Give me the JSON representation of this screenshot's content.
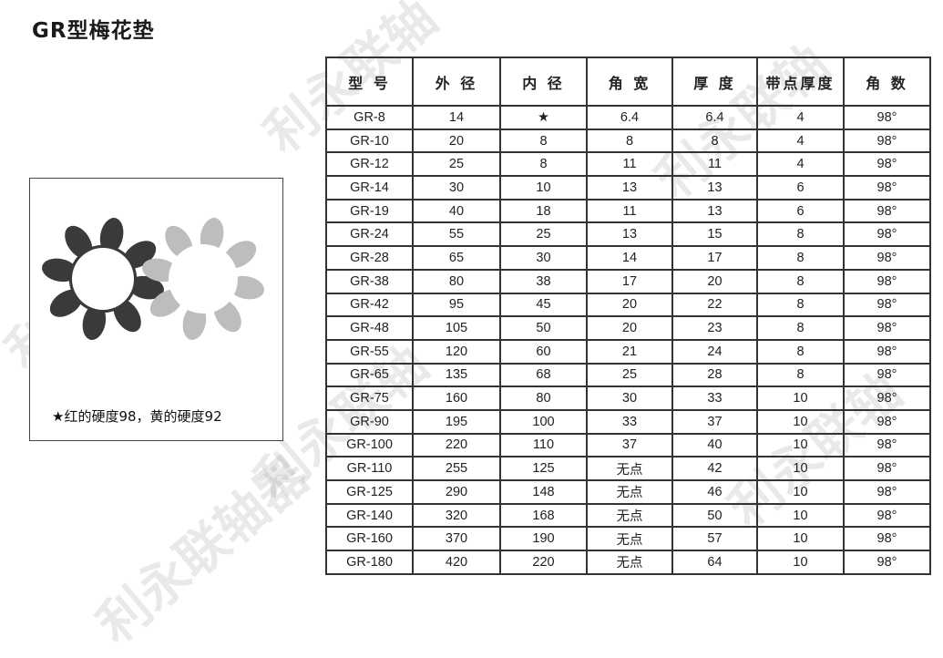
{
  "title": "GR型梅花垫",
  "image": {
    "caption": "★红的硬度98，黄的硬度92",
    "colors": {
      "dark_spider": "#3a3a3a",
      "light_spider": "#bdbdbd"
    }
  },
  "watermark": "利永联轴器",
  "table": {
    "headers": [
      "型 号",
      "外 径",
      "内 径",
      "角 宽",
      "厚 度",
      "带点厚度",
      "角 数"
    ],
    "rows": [
      [
        "GR-8",
        "14",
        "★",
        "6.4",
        "6.4",
        "4",
        "98°"
      ],
      [
        "GR-10",
        "20",
        "8",
        "8",
        "8",
        "4",
        "98°"
      ],
      [
        "GR-12",
        "25",
        "8",
        "11",
        "11",
        "4",
        "98°"
      ],
      [
        "GR-14",
        "30",
        "10",
        "13",
        "13",
        "6",
        "98°"
      ],
      [
        "GR-19",
        "40",
        "18",
        "11",
        "13",
        "6",
        "98°"
      ],
      [
        "GR-24",
        "55",
        "25",
        "13",
        "15",
        "8",
        "98°"
      ],
      [
        "GR-28",
        "65",
        "30",
        "14",
        "17",
        "8",
        "98°"
      ],
      [
        "GR-38",
        "80",
        "38",
        "17",
        "20",
        "8",
        "98°"
      ],
      [
        "GR-42",
        "95",
        "45",
        "20",
        "22",
        "8",
        "98°"
      ],
      [
        "GR-48",
        "105",
        "50",
        "20",
        "23",
        "8",
        "98°"
      ],
      [
        "GR-55",
        "120",
        "60",
        "21",
        "24",
        "8",
        "98°"
      ],
      [
        "GR-65",
        "135",
        "68",
        "25",
        "28",
        "8",
        "98°"
      ],
      [
        "GR-75",
        "160",
        "80",
        "30",
        "33",
        "10",
        "98°"
      ],
      [
        "GR-90",
        "195",
        "100",
        "33",
        "37",
        "10",
        "98°"
      ],
      [
        "GR-100",
        "220",
        "110",
        "37",
        "40",
        "10",
        "98°"
      ],
      [
        "GR-110",
        "255",
        "125",
        "无点",
        "42",
        "10",
        "98°"
      ],
      [
        "GR-125",
        "290",
        "148",
        "无点",
        "46",
        "10",
        "98°"
      ],
      [
        "GR-140",
        "320",
        "168",
        "无点",
        "50",
        "10",
        "98°"
      ],
      [
        "GR-160",
        "370",
        "190",
        "无点",
        "57",
        "10",
        "98°"
      ],
      [
        "GR-180",
        "420",
        "220",
        "无点",
        "64",
        "10",
        "98°"
      ]
    ]
  }
}
